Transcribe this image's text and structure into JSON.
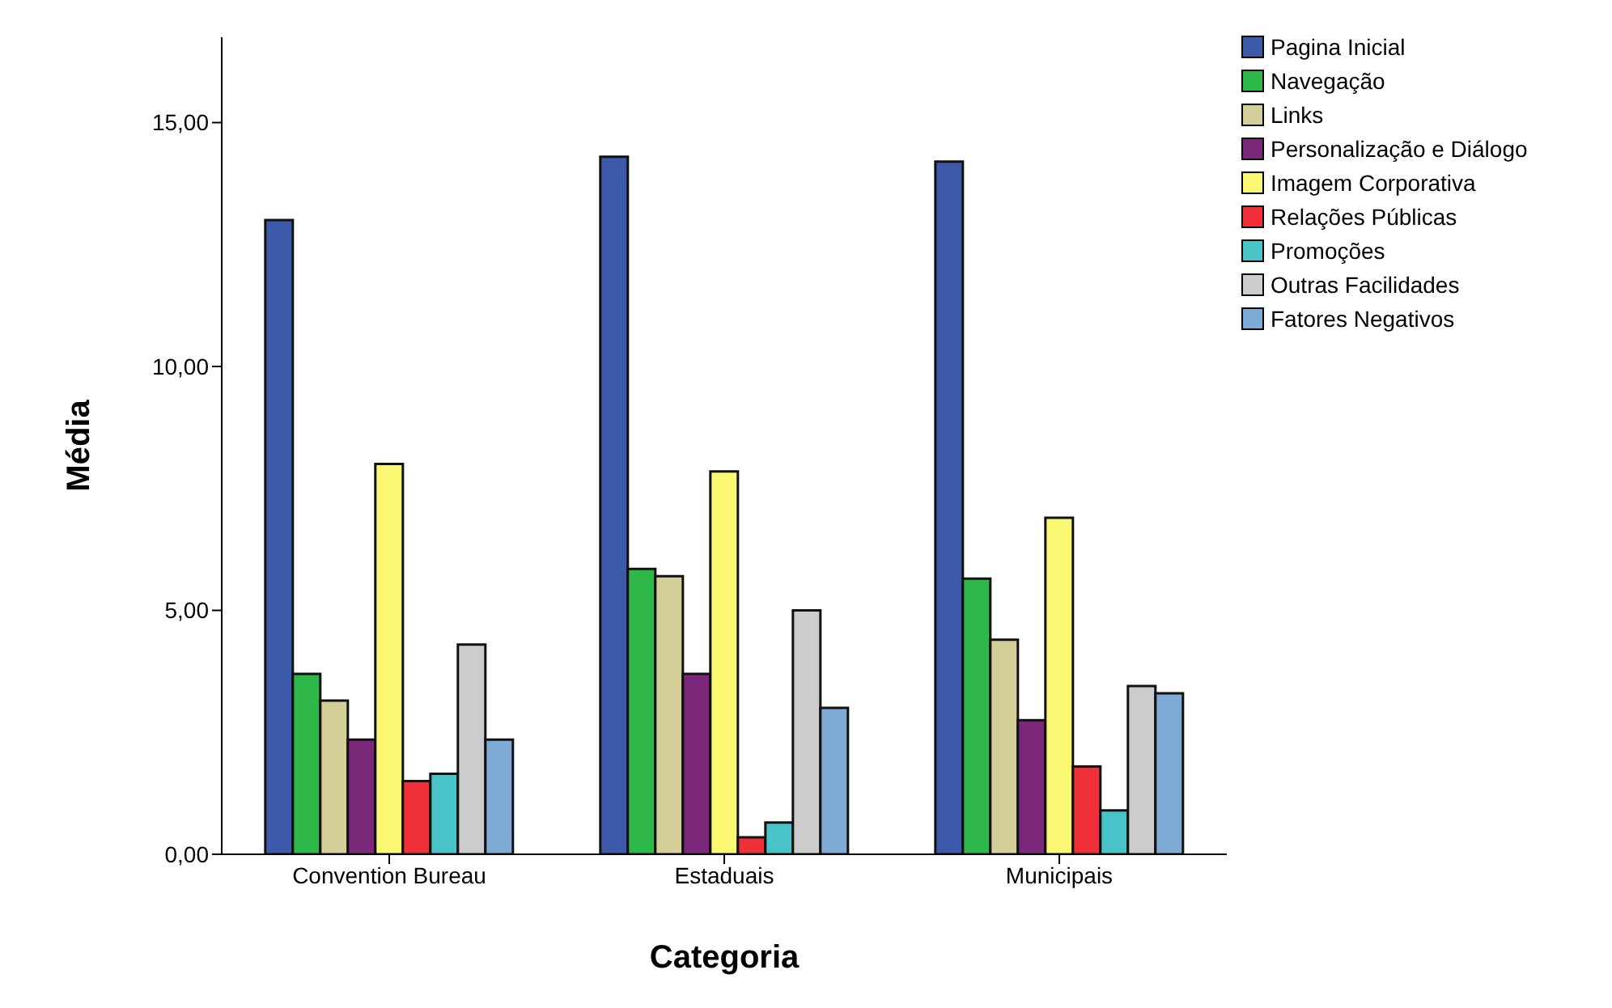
{
  "chart_data": {
    "type": "bar",
    "xlabel": "Categoria",
    "ylabel": "Média",
    "categories": [
      "Convention Bureau",
      "Estaduais",
      "Municipais"
    ],
    "series": [
      {
        "name": "Pagina Inicial",
        "color": "#3c59aa",
        "values": [
          13.0,
          14.3,
          14.2
        ]
      },
      {
        "name": "Navegação",
        "color": "#2fb84a",
        "values": [
          3.7,
          5.85,
          5.65
        ]
      },
      {
        "name": "Links",
        "color": "#d4cf98",
        "values": [
          3.15,
          5.7,
          4.4
        ]
      },
      {
        "name": "Personalização e Diálogo",
        "color": "#7b287b",
        "values": [
          2.35,
          3.7,
          2.75
        ]
      },
      {
        "name": "Imagem Corporativa",
        "color": "#faf772",
        "values": [
          8.0,
          7.85,
          6.9
        ]
      },
      {
        "name": "Relações Públicas",
        "color": "#ef3038",
        "values": [
          1.5,
          0.35,
          1.8
        ]
      },
      {
        "name": "Promoções",
        "color": "#48c4c8",
        "values": [
          1.65,
          0.65,
          0.9
        ]
      },
      {
        "name": "Outras Facilidades",
        "color": "#cccccc",
        "values": [
          4.3,
          5.0,
          3.45
        ]
      },
      {
        "name": "Fatores Negativos",
        "color": "#7eaad6",
        "values": [
          2.35,
          3.0,
          3.3
        ]
      }
    ],
    "ylim": [
      0,
      16.75
    ],
    "yticks": [
      {
        "value": 0,
        "label": "0,00"
      },
      {
        "value": 5,
        "label": "5,00"
      },
      {
        "value": 10,
        "label": "10,00"
      },
      {
        "value": 15,
        "label": "15,00"
      }
    ],
    "grid": false,
    "legend": "right"
  }
}
